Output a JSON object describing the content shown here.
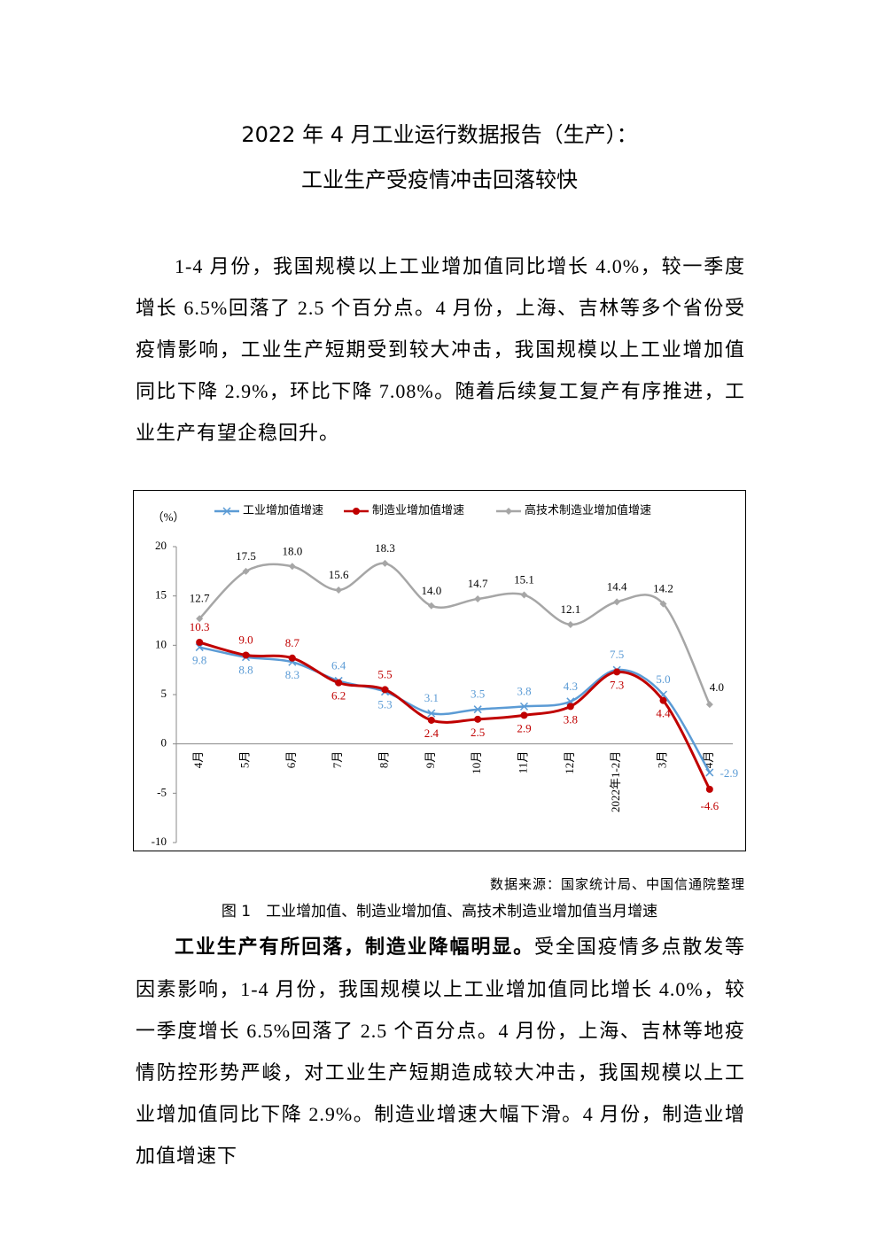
{
  "title": {
    "line1": "2022 年 4 月工业运行数据报告（生产）：",
    "line2": "工业生产受疫情冲击回落较快"
  },
  "paragraph1": "1-4 月份，我国规模以上工业增加值同比增长 4.0%，较一季度增长 6.5%回落了 2.5 个百分点。4 月份，上海、吉林等多个省份受疫情影响，工业生产短期受到较大冲击，我国规模以上工业增加值同比下降 2.9%，环比下降 7.08%。随着后续复工复产有序推进，工业生产有望企稳回升。",
  "chart_data": {
    "type": "line",
    "y_unit": "（%）",
    "categories": [
      "4月",
      "5月",
      "6月",
      "7月",
      "8月",
      "9月",
      "10月",
      "11月",
      "12月",
      "2022年1-2月",
      "3月",
      "4月"
    ],
    "series": [
      {
        "name": "工业增加值增速",
        "color": "#5b9bd5",
        "marker": "x",
        "values": [
          9.8,
          8.8,
          8.3,
          6.4,
          5.3,
          3.1,
          3.5,
          3.8,
          4.3,
          7.5,
          5.0,
          -2.9
        ],
        "value_labels": [
          "9.8",
          "8.8",
          "8.3",
          "6.4",
          "5.3",
          "3.1",
          "3.5",
          "3.8",
          "4.3",
          "7.5",
          "5.0",
          "-2.9"
        ]
      },
      {
        "name": "制造业增加值增速",
        "color": "#c00000",
        "marker": "circle",
        "values": [
          10.3,
          9.0,
          8.7,
          6.2,
          5.5,
          2.4,
          2.5,
          2.9,
          3.8,
          7.3,
          4.4,
          -4.6
        ],
        "value_labels": [
          "10.3",
          "9.0",
          "8.7",
          "6.2",
          "5.5",
          "2.4",
          "2.5",
          "2.9",
          "3.8",
          "7.3",
          "4.4",
          "-4.6"
        ]
      },
      {
        "name": "高技术制造业增加值增速",
        "color": "#a6a6a6",
        "marker": "diamond",
        "values": [
          12.7,
          17.5,
          18.0,
          15.6,
          18.3,
          14.0,
          14.7,
          15.1,
          12.1,
          14.4,
          14.2,
          4.0
        ],
        "value_labels": [
          "12.7",
          "17.5",
          "18.0",
          "15.6",
          "18.3",
          "14.0",
          "14.7",
          "15.1",
          "12.1",
          "14.4",
          "14.2",
          "4.0"
        ]
      }
    ],
    "ylim": [
      -10,
      20
    ],
    "yticks": [
      -10,
      -5,
      0,
      5,
      10,
      15,
      20
    ],
    "grid": false,
    "legend": "top"
  },
  "source": "数据来源：国家统计局、中国信通院整理",
  "caption": "图 1　工业增加值、制造业增加值、高技术制造业增加值当月增速",
  "paragraph2": {
    "lead": "工业生产有所回落，制造业降幅明显。",
    "text": "受全国疫情多点散发等因素影响，1-4 月份，我国规模以上工业增加值同比增长 4.0%，较一季度增长 6.5%回落了 2.5 个百分点。4 月份，上海、吉林等地疫情防控形势严峻，对工业生产短期造成较大冲击，我国规模以上工业增加值同比下降 2.9%。制造业增速大幅下滑。4 月份，制造业增加值增速下"
  }
}
